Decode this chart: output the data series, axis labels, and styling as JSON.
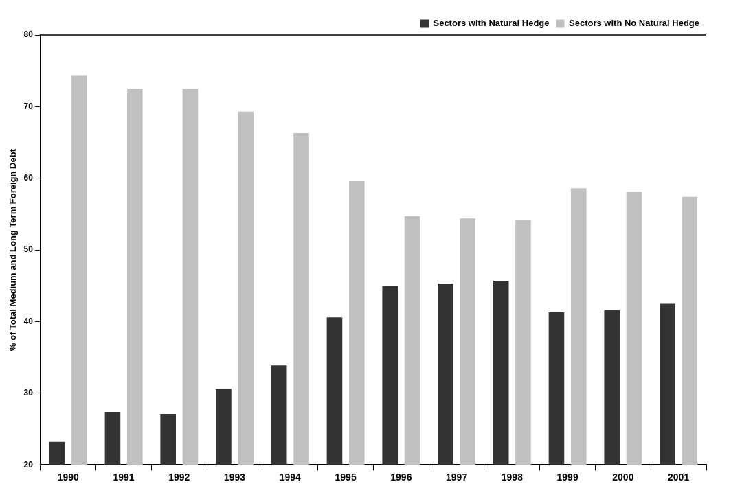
{
  "chart_data": {
    "type": "bar",
    "ylabel": "% of Total Medium and Long Term Foreign Debt",
    "categories": [
      "1990",
      "1991",
      "1992",
      "1993",
      "1994",
      "1995",
      "1996",
      "1997",
      "1998",
      "1999",
      "2000",
      "2001"
    ],
    "series": [
      {
        "name": "Sectors with Natural Hedge",
        "color": "#333333",
        "values": [
          23.2,
          27.4,
          27.1,
          30.6,
          33.9,
          40.6,
          45.0,
          45.3,
          45.7,
          41.3,
          41.6,
          42.5
        ]
      },
      {
        "name": "Sectors with No Natural Hedge",
        "color": "#c0c0c0",
        "values": [
          74.4,
          72.5,
          72.5,
          69.3,
          66.3,
          59.6,
          54.7,
          54.4,
          54.2,
          58.6,
          58.1,
          57.4
        ]
      }
    ],
    "ylim": [
      20,
      80
    ],
    "yticks": [
      20,
      30,
      40,
      50,
      60,
      70,
      80
    ],
    "grid": false,
    "legend": "top right"
  }
}
